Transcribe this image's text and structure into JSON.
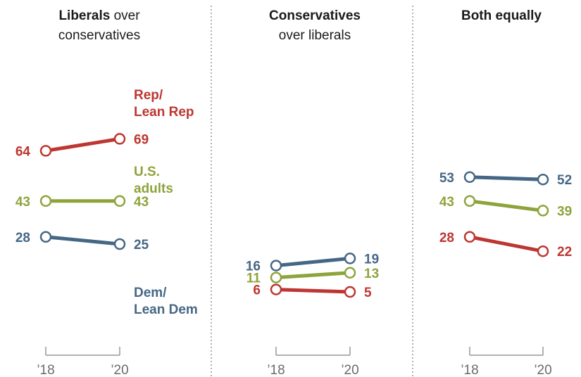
{
  "colors": {
    "rep": "#be3631",
    "us": "#8ea33c",
    "dem": "#456785",
    "axis": "#999999",
    "divider": "#666666"
  },
  "series_labels": {
    "rep": [
      "Rep/",
      "Lean Rep"
    ],
    "us": [
      "U.S.",
      "adults"
    ],
    "dem": [
      "Dem/",
      "Lean Dem"
    ]
  },
  "chart_data": [
    {
      "type": "line",
      "title": [
        "Liberals",
        " over",
        "conservatives"
      ],
      "x": [
        "’18",
        "’20"
      ],
      "series": [
        {
          "key": "rep",
          "name": "Rep/ Lean Rep",
          "values": [
            64,
            69
          ]
        },
        {
          "key": "us",
          "name": "U.S. adults",
          "values": [
            43,
            43
          ]
        },
        {
          "key": "dem",
          "name": "Dem/ Lean Dem",
          "values": [
            28,
            25
          ]
        }
      ]
    },
    {
      "type": "line",
      "title": [
        "Conservatives",
        "",
        "over liberals"
      ],
      "x": [
        "’18",
        "’20"
      ],
      "series": [
        {
          "key": "dem",
          "values": [
            16,
            19
          ]
        },
        {
          "key": "us",
          "values": [
            11,
            13
          ]
        },
        {
          "key": "rep",
          "values": [
            6,
            5
          ]
        }
      ]
    },
    {
      "type": "line",
      "title": [
        "Both equally",
        "",
        ""
      ],
      "x": [
        "’18",
        "’20"
      ],
      "series": [
        {
          "key": "dem",
          "values": [
            53,
            52
          ]
        },
        {
          "key": "us",
          "values": [
            43,
            39
          ]
        },
        {
          "key": "rep",
          "values": [
            28,
            22
          ]
        }
      ]
    }
  ]
}
